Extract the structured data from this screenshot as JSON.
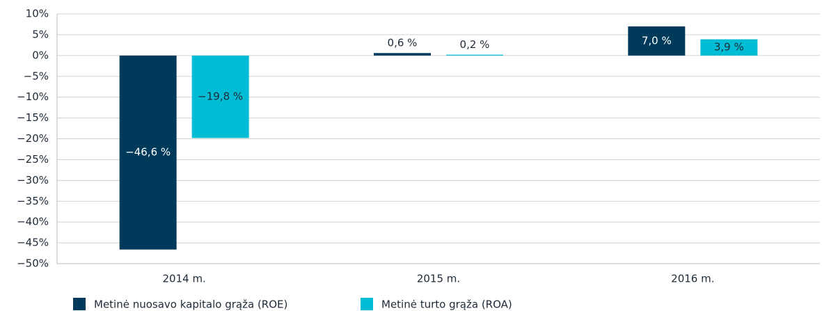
{
  "chart_data": {
    "type": "bar",
    "categories": [
      "2014 m.",
      "2015 m.",
      "2016 m."
    ],
    "series": [
      {
        "name": "Metinė nuosavo kapitalo grąža (ROE)",
        "color": "#003a5a",
        "values": [
          -46.6,
          0.6,
          7.0
        ],
        "value_labels": [
          "−46,6 %",
          "0,6 %",
          "7,0 %"
        ]
      },
      {
        "name": "Metinė turto grąža (ROA)",
        "color": "#00bcd4",
        "values": [
          -19.8,
          0.2,
          3.9
        ],
        "value_labels": [
          "−19,8 %",
          "0,2 %",
          "3,9 %"
        ]
      }
    ],
    "ylim": [
      -50,
      10
    ],
    "yticks": [
      {
        "value": 10,
        "label": "10%"
      },
      {
        "value": 5,
        "label": "5%"
      },
      {
        "value": 0,
        "label": "0%"
      },
      {
        "value": -5,
        "label": "−5%"
      },
      {
        "value": -10,
        "label": "−10%"
      },
      {
        "value": -15,
        "label": "−15%"
      },
      {
        "value": -20,
        "label": "−20%"
      },
      {
        "value": -25,
        "label": "−25%"
      },
      {
        "value": -30,
        "label": "−30%"
      },
      {
        "value": -35,
        "label": "−35%"
      },
      {
        "value": -40,
        "label": "−40%"
      },
      {
        "value": -45,
        "label": "−45%"
      },
      {
        "value": -50,
        "label": "−50%"
      }
    ],
    "grid": true,
    "legend": "bottom"
  }
}
